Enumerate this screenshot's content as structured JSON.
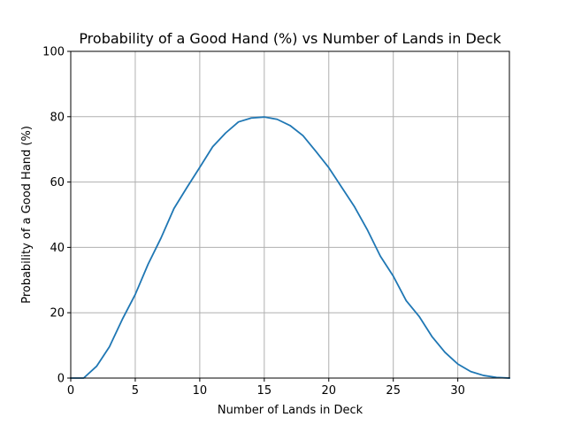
{
  "chart_data": {
    "type": "line",
    "title": "Probability of a Good Hand (%) vs Number of Lands in Deck",
    "xlabel": "Number of Lands in Deck",
    "ylabel": "Probability of a Good Hand (%)",
    "xlim": [
      0,
      34
    ],
    "ylim": [
      0,
      100
    ],
    "xticks": [
      0,
      5,
      10,
      15,
      20,
      25,
      30
    ],
    "yticks": [
      0,
      20,
      40,
      60,
      80,
      100
    ],
    "grid": true,
    "line_color": "#1f77b4",
    "x": [
      0,
      1,
      2,
      3,
      4,
      5,
      6,
      7,
      8,
      9,
      10,
      11,
      12,
      13,
      14,
      15,
      16,
      17,
      18,
      19,
      20,
      21,
      22,
      23,
      24,
      25,
      26,
      27,
      28,
      29,
      30,
      31,
      32,
      33,
      34
    ],
    "series": [
      {
        "values": [
          0,
          0,
          3.6,
          9.6,
          18,
          25.6,
          34.9,
          42.9,
          51.9,
          58.3,
          64.5,
          70.8,
          75.0,
          78.4,
          79.6,
          79.9,
          79.2,
          77.3,
          74.2,
          69.4,
          64.4,
          58.4,
          52.4,
          45.3,
          37.3,
          31.2,
          23.7,
          18.9,
          12.7,
          7.9,
          4.3,
          2.0,
          0.8,
          0.2,
          0
        ]
      }
    ]
  }
}
